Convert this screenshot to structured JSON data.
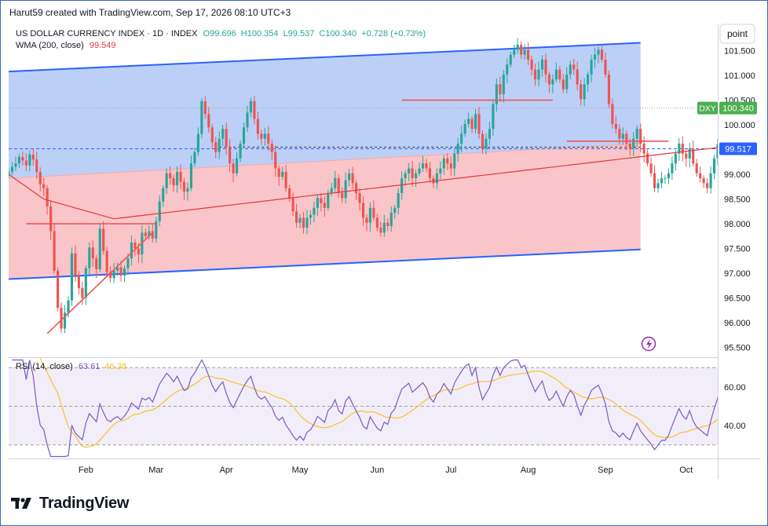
{
  "header": {
    "credit": "Harut59 created with TradingView.com, Sep 17, 2026 08:10 UTC+3",
    "scale_button": "point"
  },
  "legend": {
    "symbol": "US DOLLAR CURRENCY INDEX · 1D · INDEX",
    "open": "O99.696",
    "high": "H100.354",
    "low": "L99.537",
    "close": "C100.340",
    "change": "+0.728 (+0.73%)",
    "wma_label": "WMA (200, close)",
    "wma_value": "99.549",
    "rsi_label": "RSI (14, close)",
    "rsi_value": "63.61",
    "rsi_ma_value": "46.38"
  },
  "price_tags": {
    "ticker": "DXY",
    "last": "100.340",
    "wma_tag": "99.517"
  },
  "colors": {
    "up": "#26a69a",
    "down": "#ef5350",
    "channel_upper_fill": "#bcd0f7",
    "channel_lower_fill": "#f9c5c9",
    "channel_line": "#2962ff",
    "wma": "#e53935",
    "rsi": "#7e57c2",
    "rsi_ma": "#fbc02d",
    "last_tag": "#4caf50",
    "wma_tag": "#2962ff"
  },
  "logo": {
    "text": "TradingView",
    "icon": "tradingview-logo-icon"
  },
  "chart_data": [
    {
      "type": "candlestick",
      "panel": "price",
      "y_ticks": [
        "101.500",
        "101.000",
        "100.500",
        "100.000",
        "99.500",
        "99.000",
        "98.500",
        "98.000",
        "97.500",
        "97.000",
        "96.500",
        "96.000",
        "95.500"
      ],
      "y_tick_values": [
        101.5,
        101.0,
        100.5,
        100.0,
        99.5,
        99.0,
        98.5,
        98.0,
        97.5,
        97.0,
        96.5,
        96.0,
        95.5
      ],
      "ylim": [
        95.3,
        102.05
      ],
      "x_month_labels": [
        "Feb",
        "Mar",
        "Apr",
        "May",
        "Jun",
        "Jul",
        "Aug",
        "Sep",
        "Oct"
      ],
      "x_month_positions": [
        22,
        42,
        62,
        83,
        105,
        126,
        148,
        170,
        193
      ],
      "xlim": [
        0,
        202
      ],
      "closes": [
        99.05,
        99.15,
        99.22,
        99.35,
        99.28,
        99.18,
        99.4,
        99.3,
        99.05,
        98.8,
        98.72,
        98.35,
        97.85,
        97.05,
        96.3,
        95.88,
        96.2,
        96.45,
        97.4,
        96.95,
        96.7,
        96.5,
        97.1,
        97.52,
        97.3,
        97.08,
        97.9,
        97.45,
        97.02,
        96.9,
        97.05,
        97.12,
        96.95,
        97.1,
        97.3,
        97.62,
        97.5,
        97.38,
        97.82,
        97.75,
        97.85,
        97.7,
        98.05,
        98.45,
        98.72,
        99.02,
        98.92,
        98.78,
        99.05,
        98.85,
        98.65,
        98.72,
        99.22,
        99.45,
        99.82,
        100.48,
        100.22,
        99.95,
        99.65,
        99.45,
        99.72,
        99.92,
        99.55,
        99.22,
        99.02,
        99.32,
        99.62,
        99.95,
        100.25,
        100.48,
        100.12,
        99.82,
        99.72,
        99.82,
        99.62,
        99.45,
        99.12,
        98.95,
        99.05,
        98.72,
        98.52,
        98.25,
        98.02,
        98.12,
        97.92,
        98.12,
        98.18,
        98.32,
        98.52,
        98.42,
        98.32,
        98.62,
        98.72,
        98.92,
        98.62,
        98.52,
        98.88,
        99.02,
        98.82,
        98.62,
        98.42,
        98.12,
        98.02,
        98.32,
        98.12,
        97.92,
        97.82,
        98.02,
        97.95,
        98.22,
        98.32,
        98.62,
        98.92,
        99.02,
        99.12,
        98.92,
        99.02,
        99.12,
        99.22,
        99.12,
        98.92,
        98.82,
        99.02,
        99.12,
        99.32,
        99.22,
        99.12,
        99.42,
        99.62,
        99.82,
        100.02,
        100.12,
        99.92,
        100.22,
        99.82,
        99.52,
        99.72,
        99.92,
        100.42,
        100.82,
        100.62,
        101.02,
        101.22,
        101.42,
        101.52,
        101.62,
        101.42,
        101.52,
        101.32,
        101.12,
        100.92,
        101.12,
        101.32,
        101.02,
        100.82,
        100.92,
        101.12,
        100.92,
        100.72,
        101.02,
        101.22,
        101.12,
        100.82,
        100.52,
        100.82,
        101.02,
        101.32,
        101.42,
        101.52,
        101.32,
        101.02,
        100.42,
        100.02,
        99.92,
        99.72,
        99.82,
        99.62,
        99.52,
        99.72,
        99.92,
        99.62,
        99.42,
        99.22,
        99.02,
        98.72,
        98.82,
        98.92,
        98.92,
        99.02,
        99.22,
        99.42,
        99.62,
        99.42,
        99.32,
        99.52,
        99.22,
        99.02,
        98.92,
        98.82,
        98.72,
        99.02,
        99.32,
        99.612,
        100.34
      ],
      "wma_series": {
        "name": "WMA (200, close)",
        "value": 99.549
      },
      "last": {
        "open": 99.696,
        "high": 100.354,
        "low": 99.537,
        "close": 100.34
      }
    },
    {
      "type": "line",
      "panel": "rsi",
      "y_ticks": [
        "60.00",
        "40.00"
      ],
      "y_tick_values": [
        60,
        40
      ],
      "ylim": [
        23,
        75
      ],
      "bands": [
        70,
        50,
        30
      ],
      "series": [
        {
          "name": "RSI (14, close)",
          "current": 63.61
        },
        {
          "name": "",
          "current": 46.38
        }
      ]
    }
  ]
}
